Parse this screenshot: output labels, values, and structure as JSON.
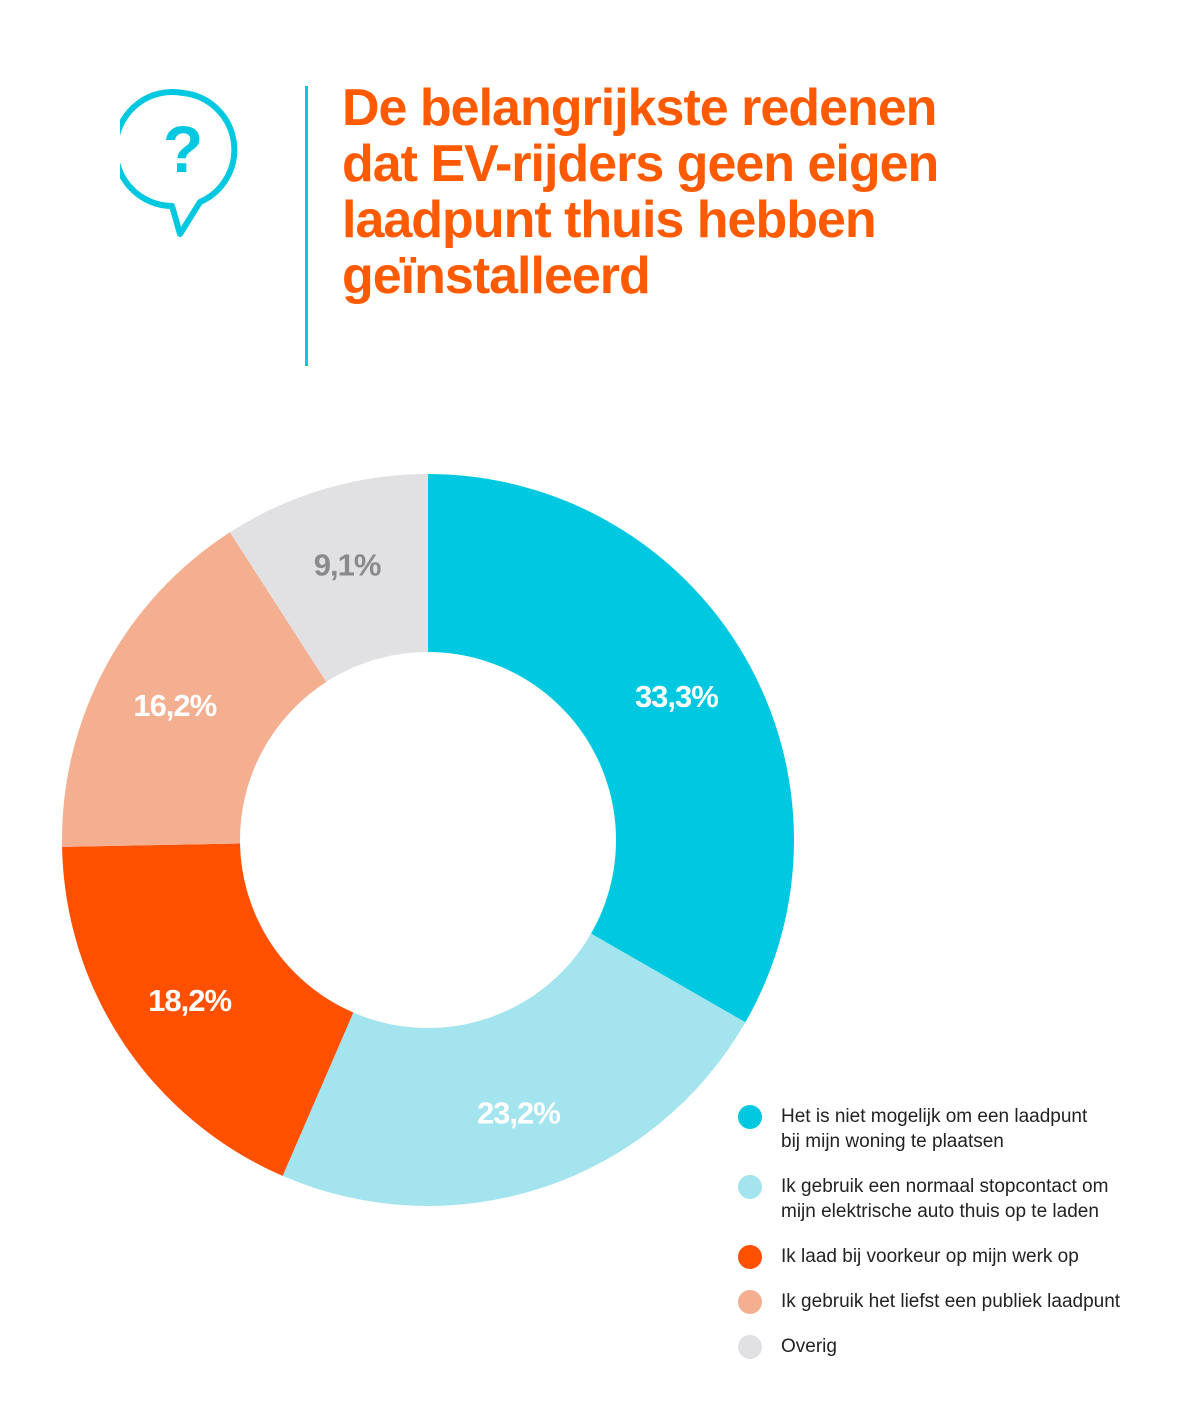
{
  "colors": {
    "accent_orange": "#ff5a00",
    "accent_cyan": "#00c8e0"
  },
  "header": {
    "icon": "question-speech-bubble-icon",
    "icon_glyph": "?",
    "title_lines": [
      "De belangrijkste redenen",
      "dat EV-rijders geen eigen",
      "laadpunt thuis hebben",
      "geïnstalleerd"
    ]
  },
  "chart_data": {
    "type": "pie",
    "donut": true,
    "title": "De belangrijkste redenen dat EV-rijders geen eigen laadpunt thuis hebben geïnstalleerd",
    "slices": [
      {
        "label_lines": [
          "Het is niet mogelijk om een laadpunt",
          "bij mijn woning te plaatsen"
        ],
        "value": 33.3,
        "value_label": "33,3%",
        "color": "#00c8e0",
        "label_color": "#ffffff"
      },
      {
        "label_lines": [
          "Ik gebruik een normaal stopcontact om",
          "mijn elektrische auto thuis op te laden"
        ],
        "value": 23.2,
        "value_label": "23,2%",
        "color": "#a3e4ee",
        "label_color": "#ffffff"
      },
      {
        "label_lines": [
          "Ik laad bij voorkeur op mijn werk op"
        ],
        "value": 18.2,
        "value_label": "18,2%",
        "color": "#ff5000",
        "label_color": "#ffffff"
      },
      {
        "label_lines": [
          "Ik gebruik het liefst een publiek laadpunt"
        ],
        "value": 16.2,
        "value_label": "16,2%",
        "color": "#f4af91",
        "label_color": "#ffffff"
      },
      {
        "label_lines": [
          "Overig"
        ],
        "value": 9.1,
        "value_label": "9,1%",
        "color": "#e1e1e3",
        "label_color": "#8a8a8e"
      }
    ],
    "legend_position": "bottom-right"
  }
}
